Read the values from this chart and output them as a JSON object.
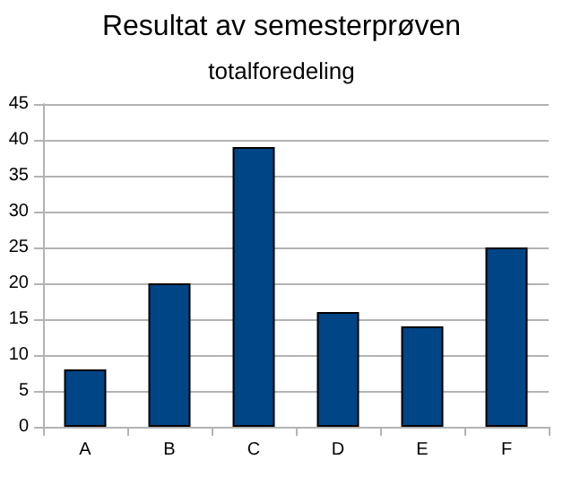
{
  "chart_data": {
    "type": "bar",
    "title": "Resultat av semesterprøven",
    "subtitle": "totalforedeling",
    "categories": [
      "A",
      "B",
      "C",
      "D",
      "E",
      "F"
    ],
    "values": [
      8,
      20,
      39,
      16,
      14,
      25
    ],
    "color": "#004586",
    "ylim": [
      0,
      45
    ],
    "yticks": [
      0,
      5,
      10,
      15,
      20,
      25,
      30,
      35,
      40,
      45
    ],
    "grid": "y"
  }
}
